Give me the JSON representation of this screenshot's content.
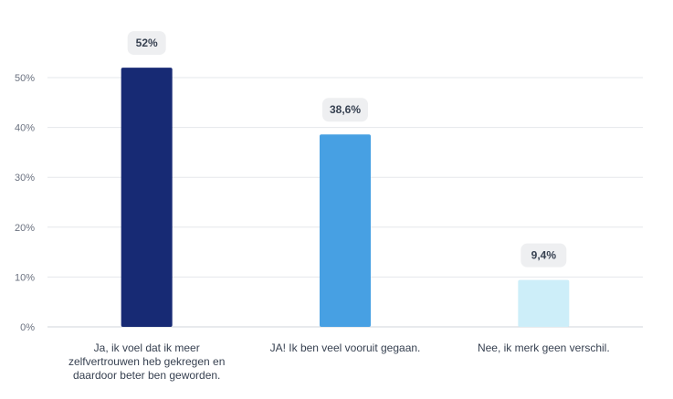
{
  "chart_data": {
    "type": "bar",
    "categories": [
      [
        "Ja, ik voel dat ik meer",
        "zelfvertrouwen heb gekregen en",
        "daardoor beter ben geworden."
      ],
      [
        "JA! Ik ben veel vooruit gegaan."
      ],
      [
        "Nee, ik merk geen verschil."
      ]
    ],
    "values": [
      52,
      38.6,
      9.4
    ],
    "data_labels": [
      "52%",
      "38,6%",
      "9,4%"
    ],
    "colors": [
      "#172a74",
      "#47a0e3",
      "#cdeef9"
    ],
    "ylim": [
      0,
      50
    ],
    "yticks": [
      0,
      10,
      20,
      30,
      40,
      50
    ],
    "ytick_labels": [
      "0%",
      "10%",
      "20%",
      "30%",
      "40%",
      "50%"
    ],
    "grid": true,
    "title": "",
    "xlabel": "",
    "ylabel": ""
  }
}
